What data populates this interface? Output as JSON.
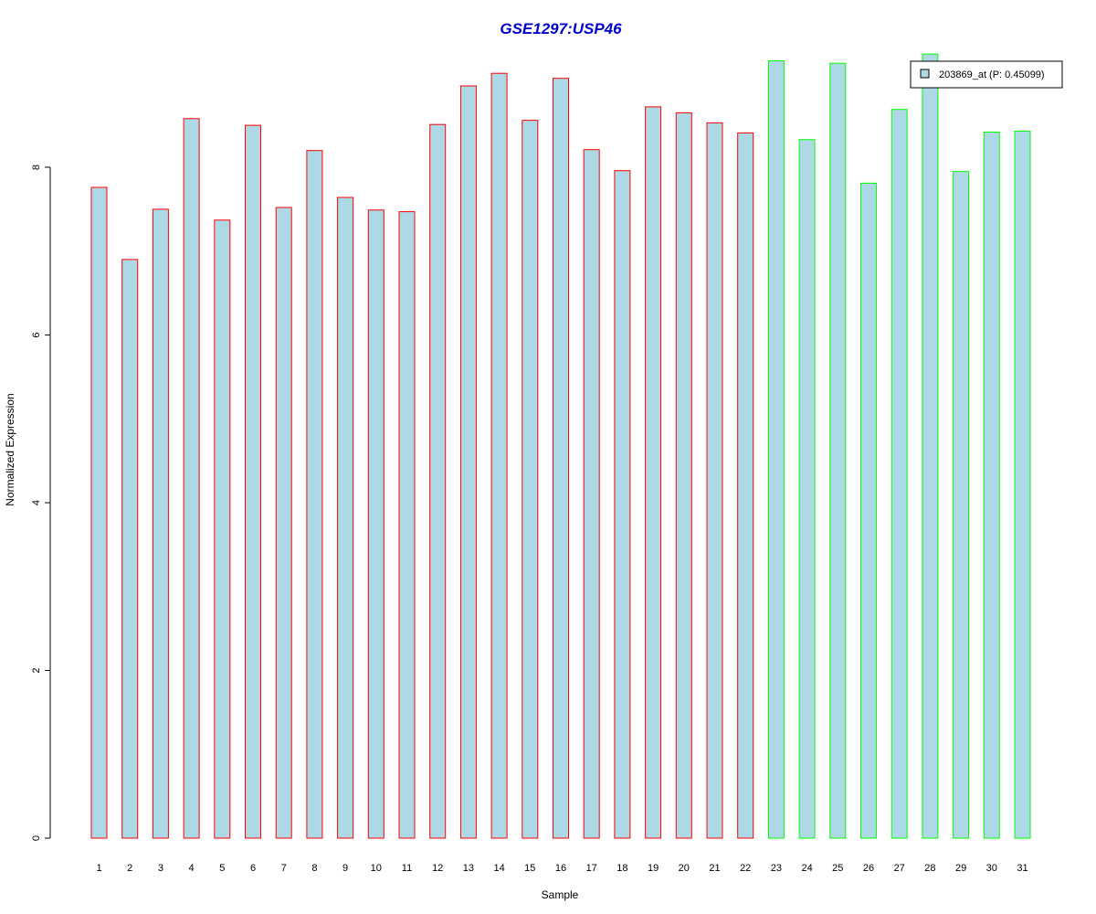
{
  "chart_data": {
    "type": "bar",
    "title": "GSE1297:USP46",
    "xlabel": "Sample",
    "ylabel": "Normalized Expression",
    "categories": [
      "1",
      "2",
      "3",
      "4",
      "5",
      "6",
      "7",
      "8",
      "9",
      "10",
      "11",
      "12",
      "13",
      "14",
      "15",
      "16",
      "17",
      "18",
      "19",
      "20",
      "21",
      "22",
      "23",
      "24",
      "25",
      "26",
      "27",
      "28",
      "29",
      "30",
      "31"
    ],
    "values": [
      7.76,
      6.9,
      7.5,
      8.58,
      7.37,
      8.5,
      7.52,
      8.2,
      7.64,
      7.49,
      7.47,
      8.51,
      8.97,
      9.12,
      8.56,
      9.06,
      8.21,
      7.96,
      8.72,
      8.65,
      8.53,
      8.41,
      9.27,
      8.33,
      9.24,
      7.81,
      8.69,
      9.35,
      7.95,
      8.42,
      8.43
    ],
    "groups": [
      "red",
      "red",
      "red",
      "red",
      "red",
      "red",
      "red",
      "red",
      "red",
      "red",
      "red",
      "red",
      "red",
      "red",
      "red",
      "red",
      "red",
      "red",
      "red",
      "red",
      "red",
      "red",
      "green",
      "green",
      "green",
      "green",
      "green",
      "green",
      "green",
      "green",
      "green"
    ],
    "yticks": [
      0,
      2,
      4,
      6,
      8
    ],
    "ylim": [
      0,
      9.3
    ],
    "legend": {
      "label": "203869_at (P: 0.45099)",
      "position": "top-right"
    },
    "colors": {
      "title": "#0000cc",
      "bar_fill": "#add8e6",
      "red_border": "#ff0000",
      "green_border": "#00ff00"
    }
  }
}
